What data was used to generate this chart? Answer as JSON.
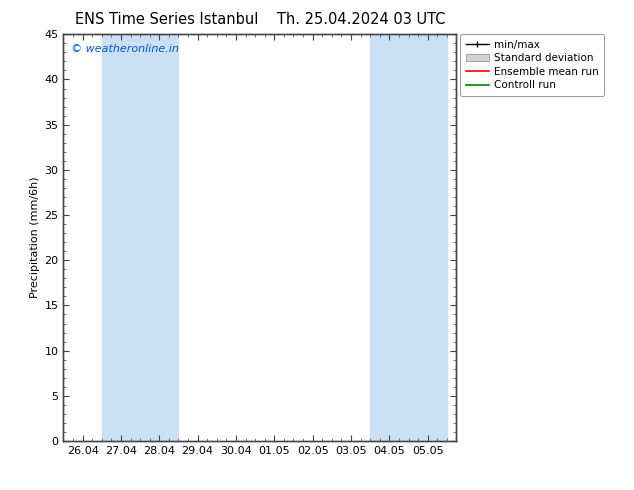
{
  "title1": "ENS Time Series Istanbul",
  "title2": "Th. 25.04.2024 03 UTC",
  "ylabel": "Precipitation (mm/6h)",
  "ylim": [
    0,
    45
  ],
  "yticks": [
    0,
    5,
    10,
    15,
    20,
    25,
    30,
    35,
    40,
    45
  ],
  "x_tick_labels": [
    "26.04",
    "27.04",
    "28.04",
    "29.04",
    "30.04",
    "01.05",
    "02.05",
    "03.05",
    "04.05",
    "05.05"
  ],
  "x_tick_positions": [
    0,
    1,
    2,
    3,
    4,
    5,
    6,
    7,
    8,
    9
  ],
  "xlim": [
    -0.5,
    9.5
  ],
  "shade_bands": [
    {
      "x_start": 0.5,
      "x_end": 2.5
    },
    {
      "x_start": 7.5,
      "x_end": 9.5
    }
  ],
  "shade_color": "#cce0f5",
  "background_color": "#ffffff",
  "plot_bg_color": "#ffffff",
  "legend_labels": [
    "min/max",
    "Standard deviation",
    "Ensemble mean run",
    "Controll run"
  ],
  "legend_colors": [
    "#000000",
    "#c8c8c8",
    "#ff0000",
    "#008000"
  ],
  "copyright_text": "© weatheronline.in",
  "copyright_color": "#0055cc",
  "title_fontsize": 10.5,
  "axis_label_fontsize": 8,
  "tick_fontsize": 8
}
